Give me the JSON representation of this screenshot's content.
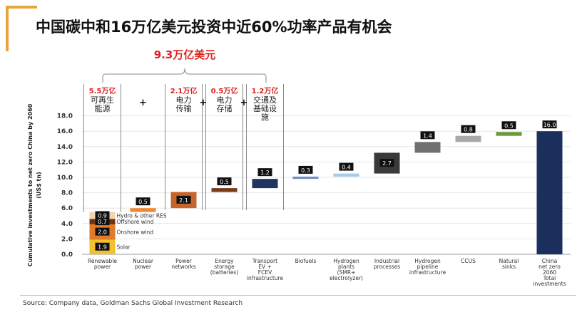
{
  "header": {
    "title": "中国碳中和16万亿美元投资中近60%功率产品有机会",
    "brace_label": "9.3万亿美元"
  },
  "annotations": [
    {
      "amount": "5.5万亿",
      "label": [
        "可再生",
        "能源"
      ],
      "col": 0
    },
    {
      "amount": "2.1万亿",
      "label": [
        "电力",
        "传输"
      ],
      "col": 2
    },
    {
      "amount": "0.5万亿",
      "label": [
        "电力",
        "存储"
      ],
      "col": 3
    },
    {
      "amount": "1.2万亿",
      "label": [
        "交通及",
        "基础设",
        "施"
      ],
      "col": 4
    }
  ],
  "plus_sign": "+",
  "source": "Source: Company data, Goldman Sachs Global Investment Research",
  "chart_data": {
    "type": "waterfall",
    "ylabel": "Cumulative investments to net zero China by 2060 (US$ tn)",
    "ylim": [
      0,
      18
    ],
    "yticks": [
      "0.0",
      "2.0",
      "4.0",
      "6.0",
      "8.0",
      "10.0",
      "12.0",
      "14.0",
      "16.0",
      "18.0"
    ],
    "categories": [
      [
        "Renewable",
        "power"
      ],
      [
        "Nuclear",
        "power"
      ],
      [
        "Power",
        "networks"
      ],
      [
        "Energy",
        "storage",
        "(batteries)"
      ],
      [
        "Transport",
        "EV +",
        "FCEV",
        "infrastructure"
      ],
      [
        "Biofuels"
      ],
      [
        "Hydrogen",
        "plants",
        "(SMR+",
        "electrolyzer)"
      ],
      [
        "Industrial",
        "processes"
      ],
      [
        "Hydrogen",
        "pipeline",
        "infrastructure"
      ],
      [
        "CCUS"
      ],
      [
        "Natural",
        "sinks"
      ],
      [
        "China",
        "net zero",
        "2060",
        "Total",
        "investments"
      ]
    ],
    "renewable_stack": [
      {
        "name": "Solar",
        "value": 1.9,
        "label": "1.9",
        "color": "#f2c12e"
      },
      {
        "name": "Onshore wind",
        "value": 2.0,
        "label": "2.0",
        "color": "#e07b2a"
      },
      {
        "name": "Offshore wind",
        "value": 0.7,
        "label": "0.7",
        "color": "#6b3512"
      },
      {
        "name": "Hydro & other RES",
        "value": 0.9,
        "label": "0.9",
        "color": "#f5d2b0"
      }
    ],
    "steps": [
      {
        "value": 0.5,
        "label": "0.5",
        "color": "#ef8a33"
      },
      {
        "value": 2.1,
        "label": "2.1",
        "color": "#c8642a"
      },
      {
        "value": 0.5,
        "label": "0.5",
        "color": "#7a3a18"
      },
      {
        "value": 1.2,
        "label": "1.2",
        "color": "#1e3560"
      },
      {
        "value": 0.3,
        "label": "0.3",
        "color": "#7390c4"
      },
      {
        "value": 0.4,
        "label": "0.4",
        "color": "#a9cbe8"
      },
      {
        "value": 2.7,
        "label": "2.7",
        "color": "#3a3a3a"
      },
      {
        "value": 1.4,
        "label": "1.4",
        "color": "#707070"
      },
      {
        "value": 0.8,
        "label": "0.8",
        "color": "#a8a8a8"
      },
      {
        "value": 0.5,
        "label": "0.5",
        "color": "#6a9a3a"
      }
    ],
    "total": {
      "value": 16.0,
      "label": "16.0",
      "color": "#1b2f5c"
    }
  }
}
